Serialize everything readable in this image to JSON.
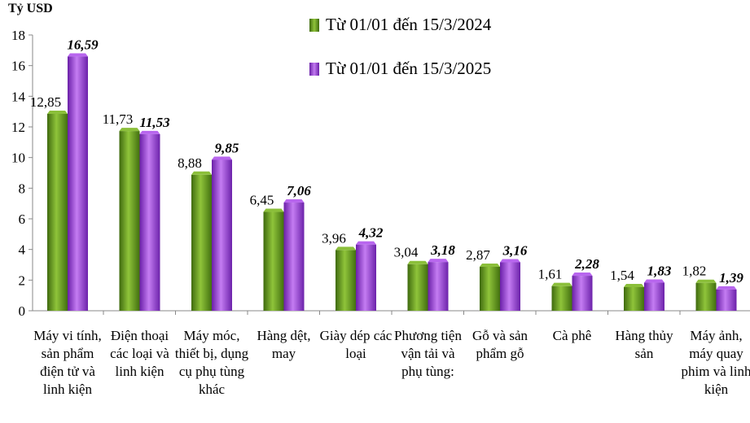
{
  "chart_data": {
    "type": "bar",
    "ylabel": "Tỷ USD",
    "ylim": [
      0,
      18
    ],
    "yticks": [
      0,
      2,
      4,
      6,
      8,
      10,
      12,
      14,
      16,
      18
    ],
    "grid": false,
    "legend_position": "top",
    "categories": [
      "Máy vi tính, sản phẩm điện tử và linh kiện",
      "Điện thoại các loại và linh kiện",
      "Máy móc, thiết bị, dụng cụ phụ tùng khác",
      "Hàng dệt, may",
      "Giày dép các loại",
      "Phương tiện vận tải và phụ tùng:",
      "Gỗ và sản phẩm gỗ",
      "Cà phê",
      "Hàng thủy sản",
      "Máy ảnh, máy quay phim và linh kiện"
    ],
    "series": [
      {
        "name": "Từ 01/01 đến 15/3/2024",
        "color": "#5e8f1e",
        "values": [
          12.85,
          11.73,
          8.88,
          6.45,
          3.96,
          3.04,
          2.87,
          1.61,
          1.54,
          1.82
        ],
        "labels": [
          "12,85",
          "11,73",
          "8,88",
          "6,45",
          "3,96",
          "3,04",
          "2,87",
          "1,61",
          "1,54",
          "1,82"
        ]
      },
      {
        "name": "Từ 01/01 đến 15/3/2025",
        "color": "#9b3fd6",
        "values": [
          16.59,
          11.53,
          9.85,
          7.06,
          4.32,
          3.18,
          3.16,
          2.28,
          1.83,
          1.39
        ],
        "labels": [
          "16,59",
          "11,53",
          "9,85",
          "7,06",
          "4,32",
          "3,18",
          "3,16",
          "2,28",
          "1,83",
          "1,39"
        ]
      }
    ]
  }
}
